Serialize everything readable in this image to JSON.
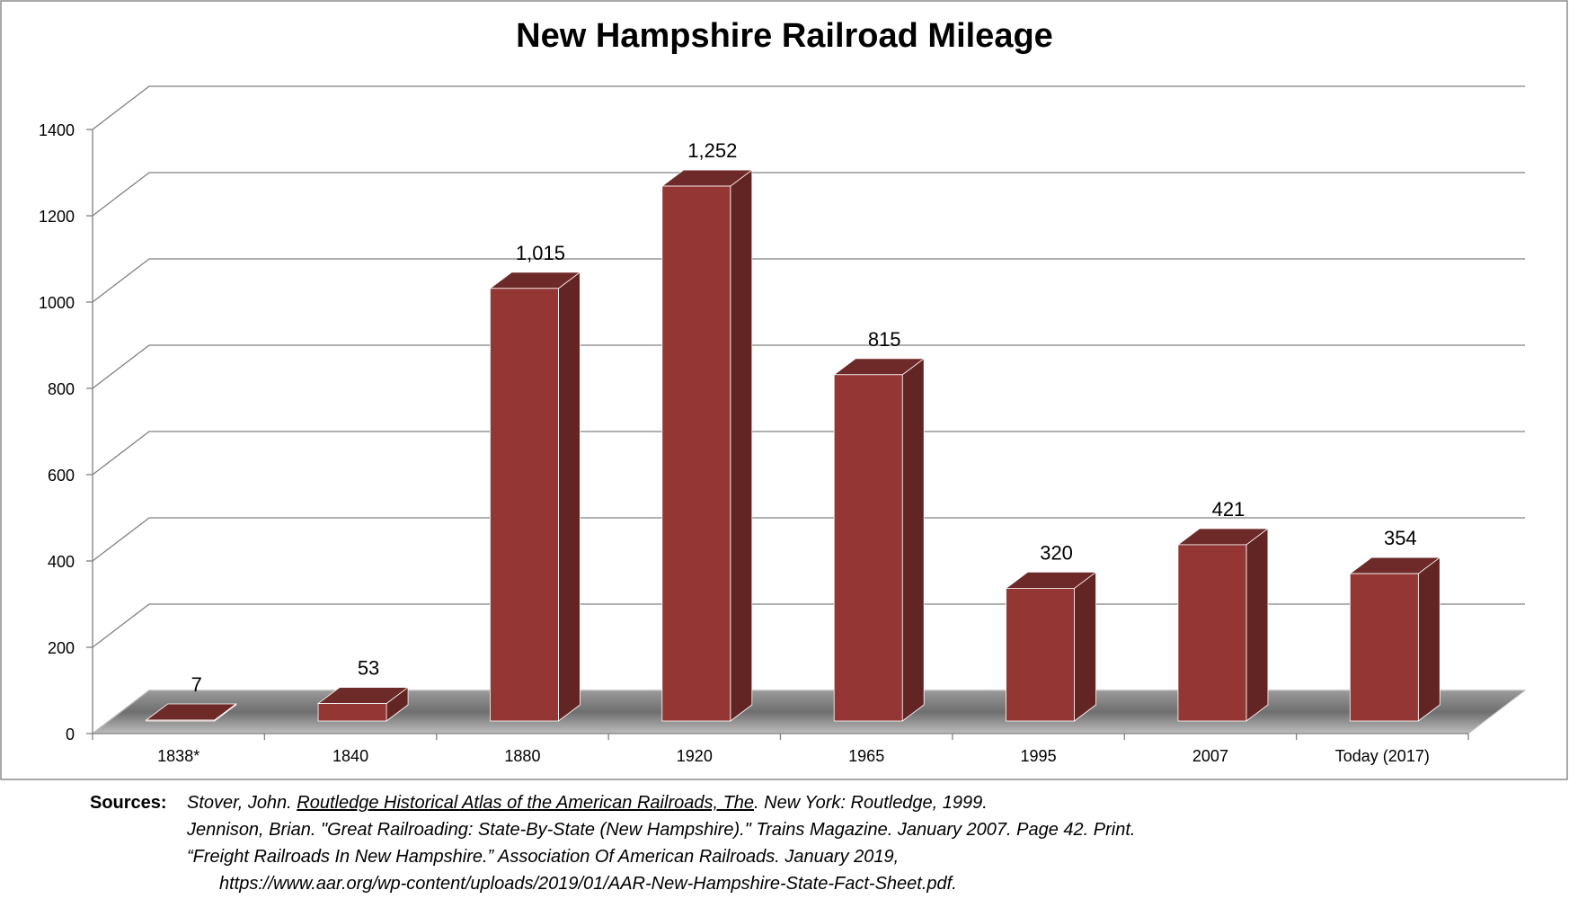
{
  "chart_data": {
    "type": "bar",
    "title": "New Hampshire Railroad Mileage",
    "categories": [
      "1838*",
      "1840",
      "1880",
      "1920",
      "1965",
      "1995",
      "2007",
      "Today  (2017)"
    ],
    "values": [
      7,
      53,
      1015,
      1252,
      815,
      320,
      421,
      354
    ],
    "data_labels": [
      "7",
      "53",
      "1,015",
      "1,252",
      "815",
      "320",
      "421",
      "354"
    ],
    "ylim": [
      0,
      1400
    ],
    "yticks": [
      "0",
      "200",
      "400",
      "600",
      "800",
      "1000",
      "1200",
      "1400"
    ],
    "ytick_values": [
      0,
      200,
      400,
      600,
      800,
      1000,
      1200,
      1400
    ],
    "grid": true,
    "three_d": true,
    "colors": {
      "bar_front": "#943634",
      "bar_side": "#632523",
      "bar_top": "#6e2a28",
      "grid": "#808080",
      "floor": "#7f7f7f"
    }
  },
  "sources": {
    "label": "Sources:",
    "entries": [
      {
        "prefix": "Stover, John. ",
        "book": "Routledge Historical Atlas of the American Railroads, The",
        "suffix": ". New York: Routledge, 1999."
      },
      {
        "text": "Jennison, Brian. \"Great Railroading: State-By-State (New Hampshire).\" Trains Magazine. January 2007. Page 42. Print."
      },
      {
        "text": "“Freight Railroads In New Hampshire.” Association Of American Railroads. January 2019,"
      },
      {
        "text": "https://www.aar.org/wp-content/uploads/2019/01/AAR-New-Hampshire-State-Fact-Sheet.pdf."
      }
    ]
  }
}
